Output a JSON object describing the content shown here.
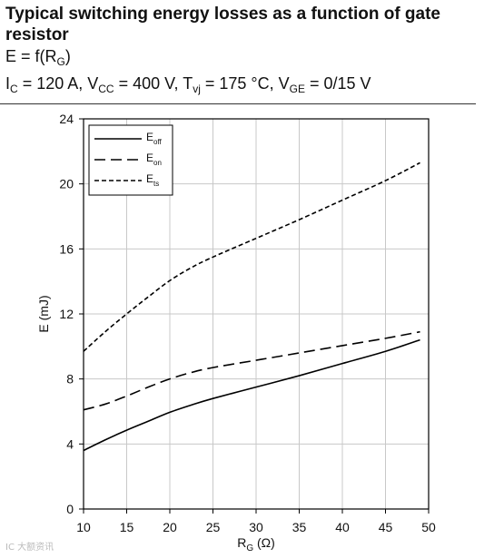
{
  "header": {
    "title": "Typical switching energy losses as a function of gate resistor",
    "formula_prefix": "E = f(R",
    "formula_sub": "G",
    "formula_suffix": ")",
    "conditions": [
      {
        "main": "I",
        "sub": "C",
        "rest": " = 120 A, "
      },
      {
        "main": "V",
        "sub": "CC",
        "rest": " = 400 V, "
      },
      {
        "main": "T",
        "sub": "vj",
        "rest": " = 175 °C, "
      },
      {
        "main": "V",
        "sub": "GE",
        "rest": " = 0/15 V"
      }
    ]
  },
  "watermark": "IC 大额资讯",
  "chart_data": {
    "type": "line",
    "title": "",
    "xlabel_main": "R",
    "xlabel_sub": "G",
    "xlabel_unit": " (Ω)",
    "ylabel": "E (mJ)",
    "xlim": [
      10,
      50
    ],
    "ylim": [
      0,
      24
    ],
    "xticks": [
      10,
      15,
      20,
      25,
      30,
      35,
      40,
      45,
      50
    ],
    "yticks": [
      0,
      4,
      8,
      12,
      16,
      20,
      24
    ],
    "grid": true,
    "legend_position": "top-left",
    "series": [
      {
        "name_main": "E",
        "name_sub": "off",
        "dash": "solid",
        "x": [
          10,
          12.5,
          15,
          17.5,
          20,
          22.5,
          25,
          30,
          35,
          40,
          45,
          49
        ],
        "y": [
          3.6,
          4.25,
          4.85,
          5.4,
          5.95,
          6.4,
          6.8,
          7.5,
          8.2,
          8.95,
          9.7,
          10.4
        ]
      },
      {
        "name_main": "E",
        "name_sub": "on",
        "dash": "dashed",
        "x": [
          10,
          12.5,
          15,
          17.5,
          20,
          22.5,
          25,
          30,
          35,
          40,
          45,
          49
        ],
        "y": [
          6.1,
          6.45,
          6.95,
          7.5,
          8.0,
          8.4,
          8.7,
          9.15,
          9.6,
          10.05,
          10.5,
          10.9
        ]
      },
      {
        "name_main": "E",
        "name_sub": "ts",
        "dash": "dotted-dashed",
        "x": [
          10,
          12.5,
          15,
          17.5,
          20,
          22.5,
          25,
          30,
          35,
          40,
          45,
          49
        ],
        "y": [
          9.7,
          10.9,
          12.0,
          13.05,
          14.05,
          14.85,
          15.5,
          16.65,
          17.8,
          19.0,
          20.2,
          21.3
        ]
      }
    ]
  }
}
